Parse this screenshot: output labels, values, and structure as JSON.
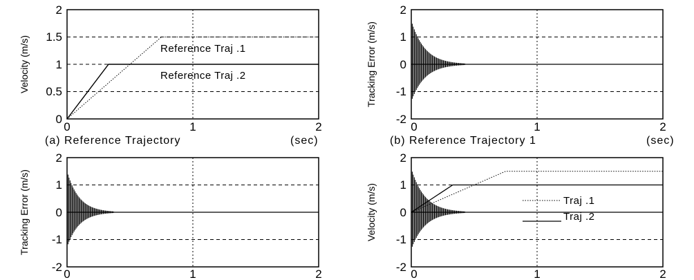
{
  "chart_data": [
    {
      "type": "line",
      "title": "",
      "caption_left": "(a) Reference Trajectory",
      "caption_right": "(sec)",
      "xlabel": "",
      "ylabel": "Velocity (m/s)",
      "xlim": [
        0,
        2
      ],
      "ylim": [
        0,
        2
      ],
      "xticks": [
        "0",
        "1",
        "2"
      ],
      "yticks": [
        "0",
        "0.5",
        "1",
        "1.5",
        "2"
      ],
      "grid": "dashed",
      "series": [
        {
          "name": "Reference Traj .1",
          "style": "dotted",
          "x": [
            0,
            0.75,
            2
          ],
          "y": [
            0,
            1.5,
            1.5
          ]
        },
        {
          "name": "Reference Traj .2",
          "style": "solid",
          "x": [
            0,
            0.33,
            2
          ],
          "y": [
            0,
            1.0,
            1.0
          ]
        }
      ],
      "annotations": [
        {
          "text": "Reference Traj .1",
          "x": 1.3,
          "y": 1.35
        },
        {
          "text": "Reference Traj .2",
          "x": 1.3,
          "y": 0.82
        }
      ]
    },
    {
      "type": "line",
      "title": "",
      "caption_left": "(b) Reference Trajectory 1",
      "caption_right": "(sec)",
      "xlabel": "",
      "ylabel": "Tracking Error (m/s)",
      "xlim": [
        0,
        2
      ],
      "ylim": [
        -2,
        2
      ],
      "xticks": [
        "0",
        "1",
        "2"
      ],
      "yticks": [
        "-2",
        "-1",
        "0",
        "1",
        "2"
      ],
      "grid": "dashed",
      "series": [
        {
          "style": "oscillation",
          "initial_amplitude": 1.6,
          "decay_end_time": 0.45,
          "settled_value": 0
        }
      ]
    },
    {
      "type": "line",
      "title": "",
      "caption_left": "",
      "caption_right": "",
      "xlabel": "",
      "ylabel": "Tracking Error (m/s)",
      "xlim": [
        0,
        2
      ],
      "ylim": [
        -2,
        2
      ],
      "xticks": [
        "0",
        "1",
        "2"
      ],
      "yticks": [
        "-2",
        "-1",
        "0",
        "1",
        "2"
      ],
      "grid": "dashed",
      "series": [
        {
          "style": "oscillation",
          "initial_amplitude": 1.5,
          "decay_end_time": 0.4,
          "settled_value": 0
        }
      ]
    },
    {
      "type": "line",
      "title": "",
      "caption_left": "",
      "caption_right": "",
      "xlabel": "",
      "ylabel": "Velocity (m/s)",
      "xlim": [
        0,
        2
      ],
      "ylim": [
        -2,
        2
      ],
      "xticks": [
        "0",
        "1",
        "2"
      ],
      "yticks": [
        "-2",
        "-1",
        "0",
        "1",
        "2"
      ],
      "grid": "dashed",
      "series": [
        {
          "name": "Traj .1",
          "style": "dotted",
          "x": [
            0,
            0.75,
            2
          ],
          "y": [
            0,
            1.5,
            1.5
          ]
        },
        {
          "name": "Traj .2",
          "style": "solid",
          "x": [
            0,
            0.33,
            2
          ],
          "y": [
            0,
            1.0,
            1.0
          ]
        },
        {
          "style": "oscillation",
          "initial_amplitude": 1.6,
          "decay_end_time": 0.45,
          "settled_value": 0
        }
      ],
      "legend": "center-right",
      "legend_items": [
        {
          "text": "Traj .1",
          "style": "dotted"
        },
        {
          "text": "Traj .2",
          "style": "solid"
        }
      ]
    }
  ]
}
